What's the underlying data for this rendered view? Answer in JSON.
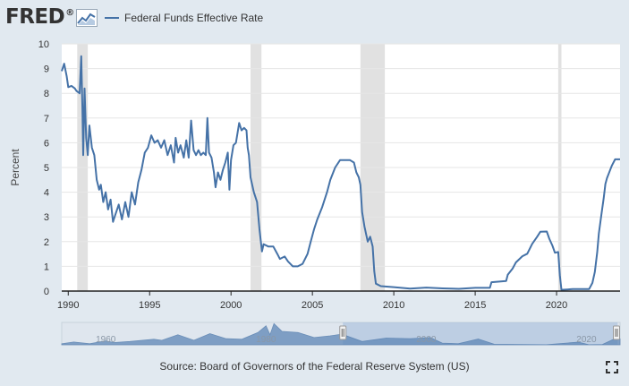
{
  "header": {
    "logo_text": "FRED",
    "logo_mark": "®"
  },
  "colors": {
    "series": "#4572a7",
    "recession": "#e1e1e1",
    "background": "#e1e9f0",
    "plot_background": "#ffffff",
    "navigator_fill": "#5e86b6",
    "navigator_window": "#a6bedc"
  },
  "icons": {
    "logo": "fred-chart-icon",
    "fullscreen": "fullscreen-icon"
  },
  "source_text": "Source: Board of Governors of the Federal Reserve System (US)",
  "chart_data": {
    "type": "line",
    "title": "",
    "xlabel": "",
    "ylabel": "Percent",
    "xlim": [
      1989.6,
      2023.9
    ],
    "ylim": [
      0,
      10
    ],
    "yticks": [
      0,
      1,
      2,
      3,
      4,
      5,
      6,
      7,
      8,
      9,
      10
    ],
    "xticks": [
      1990,
      1995,
      2000,
      2005,
      2010,
      2015,
      2020
    ],
    "grid": true,
    "legend": "top-left",
    "recessions": [
      [
        1990.55,
        1991.2
      ],
      [
        2001.2,
        2001.87
      ],
      [
        2007.95,
        2009.45
      ],
      [
        2020.1,
        2020.3
      ]
    ],
    "series": [
      {
        "name": "Federal Funds Effective Rate",
        "points": [
          [
            1989.6,
            8.9
          ],
          [
            1989.75,
            9.2
          ],
          [
            1989.9,
            8.7
          ],
          [
            1990.0,
            8.25
          ],
          [
            1990.2,
            8.3
          ],
          [
            1990.4,
            8.2
          ],
          [
            1990.5,
            8.1
          ],
          [
            1990.7,
            8.0
          ],
          [
            1990.8,
            9.5
          ],
          [
            1990.87,
            7.4
          ],
          [
            1990.92,
            5.5
          ],
          [
            1991.0,
            8.2
          ],
          [
            1991.1,
            6.2
          ],
          [
            1991.2,
            5.5
          ],
          [
            1991.3,
            6.7
          ],
          [
            1991.45,
            5.8
          ],
          [
            1991.6,
            5.5
          ],
          [
            1991.75,
            4.5
          ],
          [
            1991.9,
            4.1
          ],
          [
            1992.0,
            4.3
          ],
          [
            1992.15,
            3.6
          ],
          [
            1992.3,
            4.0
          ],
          [
            1992.45,
            3.3
          ],
          [
            1992.6,
            3.7
          ],
          [
            1992.75,
            2.8
          ],
          [
            1992.9,
            3.1
          ],
          [
            1993.1,
            3.5
          ],
          [
            1993.3,
            2.9
          ],
          [
            1993.5,
            3.6
          ],
          [
            1993.7,
            3.0
          ],
          [
            1993.9,
            4.0
          ],
          [
            1994.1,
            3.5
          ],
          [
            1994.3,
            4.4
          ],
          [
            1994.5,
            4.9
          ],
          [
            1994.7,
            5.6
          ],
          [
            1994.9,
            5.8
          ],
          [
            1995.1,
            6.3
          ],
          [
            1995.3,
            6.0
          ],
          [
            1995.5,
            6.1
          ],
          [
            1995.7,
            5.8
          ],
          [
            1995.9,
            6.1
          ],
          [
            1996.1,
            5.5
          ],
          [
            1996.3,
            5.9
          ],
          [
            1996.5,
            5.2
          ],
          [
            1996.6,
            6.2
          ],
          [
            1996.75,
            5.6
          ],
          [
            1996.9,
            5.9
          ],
          [
            1997.1,
            5.4
          ],
          [
            1997.25,
            6.1
          ],
          [
            1997.4,
            5.4
          ],
          [
            1997.55,
            6.9
          ],
          [
            1997.7,
            5.7
          ],
          [
            1997.85,
            5.5
          ],
          [
            1998.0,
            5.7
          ],
          [
            1998.15,
            5.5
          ],
          [
            1998.3,
            5.6
          ],
          [
            1998.45,
            5.5
          ],
          [
            1998.55,
            7.0
          ],
          [
            1998.65,
            5.6
          ],
          [
            1998.8,
            5.4
          ],
          [
            1998.95,
            4.8
          ],
          [
            1999.05,
            4.2
          ],
          [
            1999.2,
            4.8
          ],
          [
            1999.35,
            4.5
          ],
          [
            1999.5,
            4.9
          ],
          [
            1999.65,
            5.2
          ],
          [
            1999.8,
            5.6
          ],
          [
            1999.9,
            4.1
          ],
          [
            2000.0,
            5.3
          ],
          [
            2000.15,
            5.9
          ],
          [
            2000.3,
            6.0
          ],
          [
            2000.5,
            6.8
          ],
          [
            2000.65,
            6.5
          ],
          [
            2000.8,
            6.6
          ],
          [
            2000.95,
            6.5
          ],
          [
            2001.02,
            5.8
          ],
          [
            2001.1,
            5.5
          ],
          [
            2001.2,
            4.6
          ],
          [
            2001.4,
            4.0
          ],
          [
            2001.6,
            3.6
          ],
          [
            2001.75,
            2.5
          ],
          [
            2001.9,
            1.6
          ],
          [
            2002.0,
            1.9
          ],
          [
            2002.3,
            1.8
          ],
          [
            2002.6,
            1.8
          ],
          [
            2002.85,
            1.5
          ],
          [
            2003.0,
            1.3
          ],
          [
            2003.3,
            1.4
          ],
          [
            2003.5,
            1.2
          ],
          [
            2003.8,
            1.0
          ],
          [
            2004.1,
            1.0
          ],
          [
            2004.4,
            1.1
          ],
          [
            2004.7,
            1.5
          ],
          [
            2004.9,
            2.0
          ],
          [
            2005.1,
            2.5
          ],
          [
            2005.3,
            2.9
          ],
          [
            2005.6,
            3.4
          ],
          [
            2005.9,
            4.0
          ],
          [
            2006.1,
            4.5
          ],
          [
            2006.4,
            5.0
          ],
          [
            2006.7,
            5.3
          ],
          [
            2007.0,
            5.3
          ],
          [
            2007.3,
            5.3
          ],
          [
            2007.55,
            5.2
          ],
          [
            2007.7,
            4.8
          ],
          [
            2007.85,
            4.6
          ],
          [
            2007.95,
            4.3
          ],
          [
            2008.05,
            3.2
          ],
          [
            2008.2,
            2.6
          ],
          [
            2008.4,
            2.0
          ],
          [
            2008.55,
            2.2
          ],
          [
            2008.7,
            1.8
          ],
          [
            2008.8,
            0.8
          ],
          [
            2008.9,
            0.3
          ],
          [
            2009.2,
            0.2
          ],
          [
            2010.0,
            0.16
          ],
          [
            2011.0,
            0.1
          ],
          [
            2012.0,
            0.14
          ],
          [
            2013.0,
            0.11
          ],
          [
            2014.0,
            0.09
          ],
          [
            2015.0,
            0.13
          ],
          [
            2015.9,
            0.13
          ],
          [
            2016.0,
            0.36
          ],
          [
            2016.9,
            0.41
          ],
          [
            2017.0,
            0.66
          ],
          [
            2017.3,
            0.91
          ],
          [
            2017.5,
            1.16
          ],
          [
            2017.9,
            1.41
          ],
          [
            2018.2,
            1.51
          ],
          [
            2018.5,
            1.91
          ],
          [
            2018.8,
            2.19
          ],
          [
            2019.0,
            2.4
          ],
          [
            2019.4,
            2.41
          ],
          [
            2019.55,
            2.12
          ],
          [
            2019.75,
            1.83
          ],
          [
            2019.9,
            1.55
          ],
          [
            2020.1,
            1.58
          ],
          [
            2020.2,
            0.65
          ],
          [
            2020.3,
            0.05
          ],
          [
            2021.0,
            0.08
          ],
          [
            2022.0,
            0.08
          ],
          [
            2022.2,
            0.33
          ],
          [
            2022.35,
            0.77
          ],
          [
            2022.5,
            1.58
          ],
          [
            2022.6,
            2.33
          ],
          [
            2022.75,
            3.08
          ],
          [
            2022.9,
            3.78
          ],
          [
            2023.0,
            4.33
          ],
          [
            2023.1,
            4.57
          ],
          [
            2023.25,
            4.83
          ],
          [
            2023.4,
            5.08
          ],
          [
            2023.6,
            5.33
          ],
          [
            2023.9,
            5.33
          ]
        ]
      }
    ],
    "navigator": {
      "tick_labels": [
        "1960",
        "1980",
        "2000",
        "2020"
      ],
      "tick_years": [
        1960,
        1980,
        2000,
        2020
      ],
      "xlim": [
        1954.5,
        2024.2
      ],
      "selected_range": [
        1989.6,
        2023.9
      ]
    }
  }
}
